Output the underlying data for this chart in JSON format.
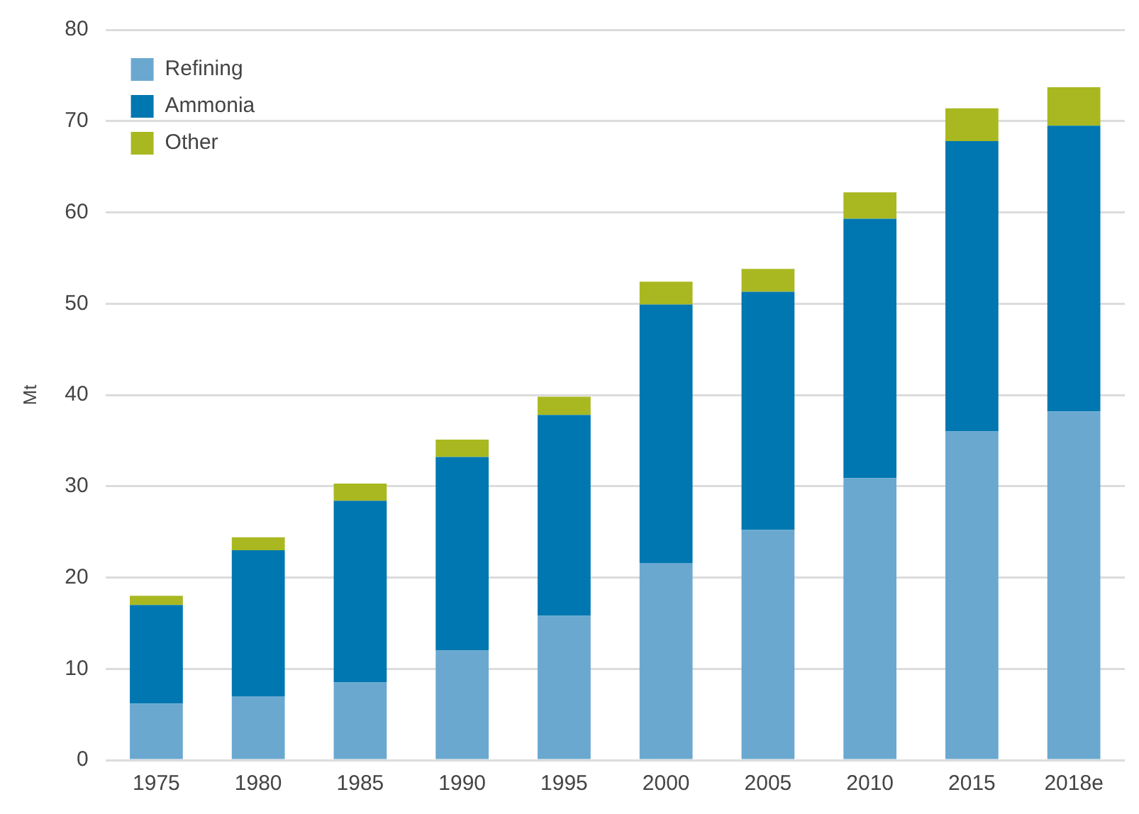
{
  "chart_data": {
    "type": "bar",
    "stacked": true,
    "ylabel": "Mt",
    "categories": [
      "1975",
      "1980",
      "1985",
      "1990",
      "1995",
      "2000",
      "2005",
      "2010",
      "2015",
      "2018e"
    ],
    "series": [
      {
        "name": "Refining",
        "color": "#6aa8d0",
        "values": [
          6.2,
          7,
          8.5,
          12,
          15.8,
          21.6,
          25.2,
          30.9,
          36,
          38.2
        ]
      },
      {
        "name": "Ammonia",
        "color": "#0077b0",
        "values": [
          10.8,
          16,
          19.9,
          21.2,
          22,
          28.3,
          26.1,
          28.4,
          31.8,
          31.3
        ]
      },
      {
        "name": "Other",
        "color": "#a9b820",
        "values": [
          1,
          1.4,
          1.9,
          1.9,
          2,
          2.5,
          2.5,
          2.9,
          3.6,
          4.2
        ]
      }
    ],
    "ylim": [
      0,
      80
    ],
    "yticks": [
      0,
      10,
      20,
      30,
      40,
      50,
      60,
      70,
      80
    ],
    "grid": "y",
    "legend": "top left"
  }
}
